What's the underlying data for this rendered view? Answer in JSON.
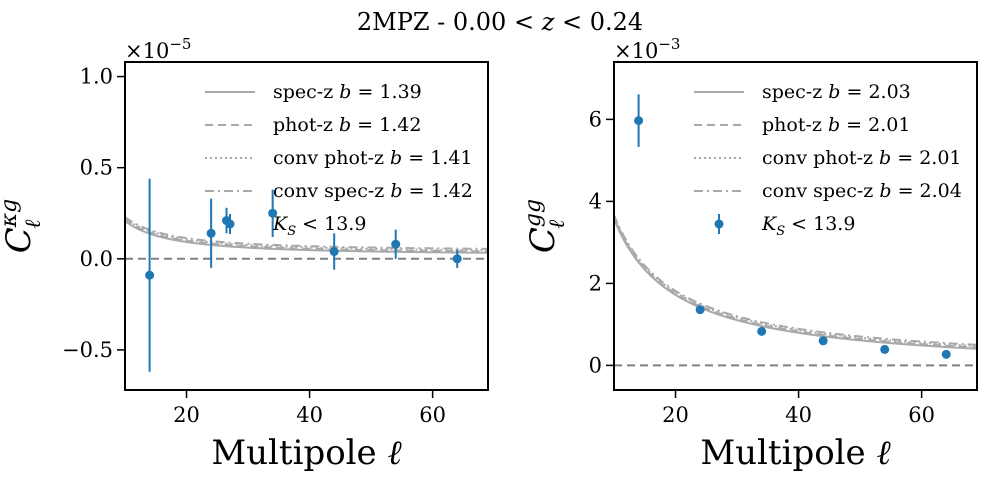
{
  "figure": {
    "title": "2MPZ - 0.00 < z < 0.24"
  },
  "chart_data": [
    {
      "type": "scatter",
      "name": "kappa-g",
      "xlabel": "Multipole ℓ",
      "ylabel": "C_ℓ^{κg}",
      "offset_text": "×10^{-5}",
      "offset_exponent": -5,
      "xlim": [
        10,
        69
      ],
      "ylim": [
        -0.72,
        1.08
      ],
      "xticks": [
        20,
        40,
        60
      ],
      "yticks": [
        -0.5,
        0.0,
        0.5,
        1.0
      ],
      "ytick_labels": [
        "−0.5",
        "0.0",
        "0.5",
        "1.0"
      ],
      "grid": false,
      "legend_position": "top-right",
      "zero_line": true,
      "model_amplitude": 4.5,
      "model_decay": 1.38,
      "model_offset": 0.02,
      "series": [
        {
          "name": "spec-z",
          "b": "1.39",
          "kind": "model",
          "style": "solid",
          "color": "#a9a9a9"
        },
        {
          "name": "phot-z",
          "b": "1.42",
          "kind": "model",
          "style": "dashed",
          "color": "#a9a9a9"
        },
        {
          "name": "conv phot-z",
          "b": "1.41",
          "kind": "model",
          "style": "dotted",
          "color": "#a9a9a9"
        },
        {
          "name": "conv spec-z",
          "b": "1.42",
          "kind": "model",
          "style": "dashdot",
          "color": "#a9a9a9"
        },
        {
          "name": "K_S < 13.9",
          "kind": "data",
          "color": "#1f77b4",
          "points": [
            {
              "x": 14.0,
              "y": -0.09,
              "err": 0.53
            },
            {
              "x": 24.0,
              "y": 0.14,
              "err": 0.19
            },
            {
              "x": 26.5,
              "y": 0.21,
              "err": 0.07
            },
            {
              "x": 34.0,
              "y": 0.25,
              "err": 0.13
            },
            {
              "x": 44.0,
              "y": 0.04,
              "err": 0.1
            },
            {
              "x": 54.0,
              "y": 0.08,
              "err": 0.08
            },
            {
              "x": 64.0,
              "y": 0.0,
              "err": 0.05
            }
          ]
        }
      ]
    },
    {
      "type": "scatter",
      "name": "g-g",
      "xlabel": "Multipole ℓ",
      "ylabel": "C_ℓ^{gg}",
      "offset_text": "×10^{-3}",
      "offset_exponent": -3,
      "xlim": [
        10,
        69
      ],
      "ylim": [
        -0.6,
        7.4
      ],
      "xticks": [
        20,
        40,
        60
      ],
      "yticks": [
        0,
        2,
        4,
        6
      ],
      "ytick_labels": [
        "0",
        "2",
        "4",
        "6"
      ],
      "grid": false,
      "legend_position": "top-right",
      "zero_line": true,
      "model_amplitude": 37.0,
      "model_decay": 1.0,
      "model_offset": -0.13,
      "series": [
        {
          "name": "spec-z",
          "b": "2.03",
          "kind": "model",
          "style": "solid",
          "color": "#a9a9a9"
        },
        {
          "name": "phot-z",
          "b": "2.01",
          "kind": "model",
          "style": "dashed",
          "color": "#a9a9a9"
        },
        {
          "name": "conv phot-z",
          "b": "2.01",
          "kind": "model",
          "style": "dotted",
          "color": "#a9a9a9"
        },
        {
          "name": "conv spec-z",
          "b": "2.04",
          "kind": "model",
          "style": "dashdot",
          "color": "#a9a9a9"
        },
        {
          "name": "K_S < 13.9",
          "kind": "data",
          "color": "#1f77b4",
          "points": [
            {
              "x": 14.0,
              "y": 5.97,
              "err": 0.64
            },
            {
              "x": 24.0,
              "y": 1.36,
              "err": 0.04
            },
            {
              "x": 34.0,
              "y": 0.83,
              "err": 0.04
            },
            {
              "x": 44.0,
              "y": 0.6,
              "err": 0.04
            },
            {
              "x": 54.0,
              "y": 0.39,
              "err": 0.04
            },
            {
              "x": 64.0,
              "y": 0.27,
              "err": 0.04
            }
          ]
        }
      ]
    }
  ]
}
